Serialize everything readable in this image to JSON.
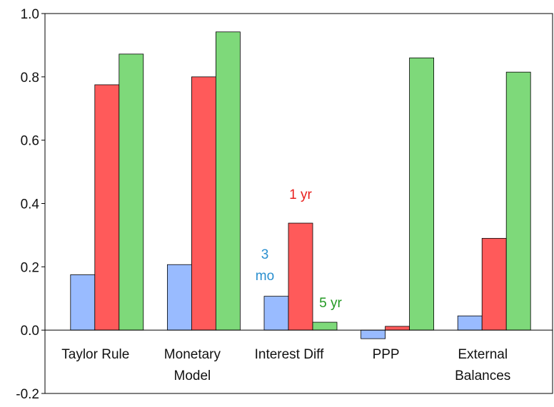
{
  "chart_data": {
    "type": "bar",
    "categories": [
      "Taylor Rule",
      "Monetary Model",
      "Interest Diff",
      "PPP",
      "External Balances"
    ],
    "series": [
      {
        "name": "3 mo",
        "color": "#99bbff",
        "label_color": "#2a8fcf",
        "values": [
          0.175,
          0.207,
          0.107,
          -0.027,
          0.045
        ]
      },
      {
        "name": "1 yr",
        "color": "#ff5a5a",
        "label_color": "#e8201e",
        "values": [
          0.775,
          0.8,
          0.338,
          0.012,
          0.29
        ]
      },
      {
        "name": "5 yr",
        "color": "#7ed97a",
        "label_color": "#229922",
        "values": [
          0.872,
          0.942,
          0.025,
          0.86,
          0.815
        ]
      }
    ],
    "ylim": [
      -0.2,
      1.0
    ],
    "yticks": [
      {
        "value": 1.0,
        "label": "1.0"
      },
      0.8,
      0.6,
      0.4,
      0.2,
      {
        "value": 0.0,
        "label": "0.0"
      },
      -0.2
    ],
    "grid": false
  }
}
